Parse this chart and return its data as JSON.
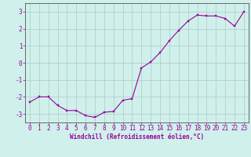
{
  "x": [
    0,
    1,
    2,
    3,
    4,
    5,
    6,
    7,
    8,
    9,
    10,
    11,
    12,
    13,
    14,
    15,
    16,
    17,
    18,
    19,
    20,
    21,
    22,
    23
  ],
  "y": [
    -2.3,
    -2.0,
    -2.0,
    -2.5,
    -2.8,
    -2.8,
    -3.1,
    -3.2,
    -2.9,
    -2.85,
    -2.2,
    -2.1,
    -0.3,
    0.05,
    0.6,
    1.3,
    1.9,
    2.45,
    2.8,
    2.75,
    2.75,
    2.6,
    2.15,
    3.0
  ],
  "line_color": "#990099",
  "bg_color": "#cff0eb",
  "grid_color": "#b0c8c8",
  "axis_color": "#990099",
  "xlabel": "Windchill (Refroidissement éolien,°C)",
  "ylim": [
    -3.5,
    3.5
  ],
  "xlim": [
    -0.5,
    23.5
  ],
  "yticks": [
    -3,
    -2,
    -1,
    0,
    1,
    2,
    3
  ],
  "xticks": [
    0,
    1,
    2,
    3,
    4,
    5,
    6,
    7,
    8,
    9,
    10,
    11,
    12,
    13,
    14,
    15,
    16,
    17,
    18,
    19,
    20,
    21,
    22,
    23
  ],
  "xlabel_fontsize": 5.5,
  "tick_fontsize": 5.5,
  "marker_size": 2.0,
  "line_width": 0.8
}
